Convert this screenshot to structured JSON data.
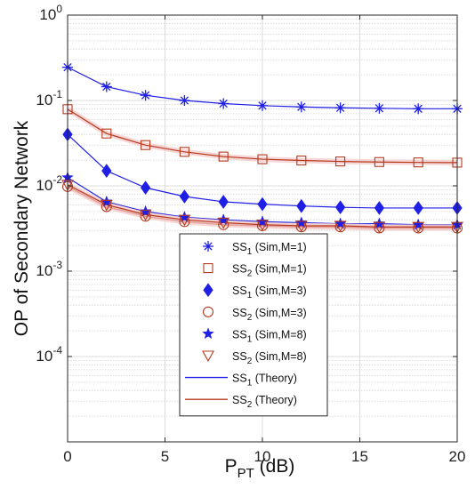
{
  "chart_data": {
    "type": "line",
    "xlabel": "P",
    "xlabel_sub": "PT",
    "xlabel_unit": " (dB)",
    "ylabel": "OP of Secondary Network",
    "xlim": [
      0,
      20
    ],
    "ylim": [
      1e-05,
      1
    ],
    "yscale": "log",
    "grid": true,
    "legend_placement": "lower-center",
    "x_ticks": [
      0,
      5,
      10,
      15,
      20
    ],
    "y_ticks": [
      {
        "value": 1,
        "base": "10",
        "exp": "0"
      },
      {
        "value": 0.1,
        "base": "10",
        "exp": "-1"
      },
      {
        "value": 0.01,
        "base": "10",
        "exp": "-2"
      },
      {
        "value": 0.001,
        "base": "10",
        "exp": "-3"
      },
      {
        "value": 0.0001,
        "base": "10",
        "exp": "-4"
      }
    ],
    "x": [
      0,
      2,
      4,
      6,
      8,
      10,
      12,
      14,
      16,
      18,
      20
    ],
    "series": [
      {
        "name": "SS1 (Sim,M=1)",
        "label_main": "SS",
        "label_sub": "1",
        "label_rest": " (Sim,M=1)",
        "marker": "asterisk",
        "color": "#1f1fe6",
        "values": [
          0.245,
          0.145,
          0.115,
          0.1,
          0.092,
          0.087,
          0.084,
          0.082,
          0.081,
          0.08,
          0.08
        ]
      },
      {
        "name": "SS2 (Sim,M=1)",
        "label_main": "SS",
        "label_sub": "2",
        "label_rest": " (Sim,M=1)",
        "marker": "square",
        "color": "#b5391e",
        "values": [
          0.079,
          0.041,
          0.03,
          0.025,
          0.022,
          0.0205,
          0.0198,
          0.0193,
          0.019,
          0.0188,
          0.0187
        ]
      },
      {
        "name": "SS1 (Sim,M=3)",
        "label_main": "SS",
        "label_sub": "1",
        "label_rest": " (Sim,M=3)",
        "marker": "diamond",
        "color": "#1f1fe6",
        "values": [
          0.04,
          0.015,
          0.0095,
          0.0075,
          0.0065,
          0.0061,
          0.0058,
          0.0056,
          0.0055,
          0.0055,
          0.0055
        ]
      },
      {
        "name": "SS2 (Sim,M=3)",
        "label_main": "SS",
        "label_sub": "2",
        "label_rest": " (Sim,M=3)",
        "marker": "circle",
        "color": "#b5391e",
        "values": [
          0.0098,
          0.0057,
          0.0044,
          0.0038,
          0.0035,
          0.0034,
          0.0033,
          0.0033,
          0.0032,
          0.0032,
          0.0032
        ]
      },
      {
        "name": "SS1 (Sim,M=8)",
        "label_main": "SS",
        "label_sub": "1",
        "label_rest": " (Sim,M=8)",
        "marker": "star",
        "color": "#1f1fe6",
        "values": [
          0.0125,
          0.0065,
          0.005,
          0.0043,
          0.004,
          0.0038,
          0.0037,
          0.0036,
          0.0036,
          0.0035,
          0.0035
        ]
      },
      {
        "name": "SS2 (Sim,M=8)",
        "label_main": "SS",
        "label_sub": "2",
        "label_rest": " (Sim,M=8)",
        "marker": "triangle-down",
        "color": "#b5391e",
        "values": [
          0.0103,
          0.006,
          0.0046,
          0.004,
          0.0037,
          0.0035,
          0.0034,
          0.0034,
          0.0033,
          0.0033,
          0.0033
        ]
      }
    ],
    "theory_legend": [
      {
        "name": "SS1 (Theory)",
        "label_main": "SS",
        "label_sub": "1",
        "label_rest": " (Theory)",
        "color": "#1f1fe6"
      },
      {
        "name": "SS2 (Theory)",
        "label_main": "SS",
        "label_sub": "2",
        "label_rest": " (Theory)",
        "color": "#b5391e"
      }
    ]
  }
}
